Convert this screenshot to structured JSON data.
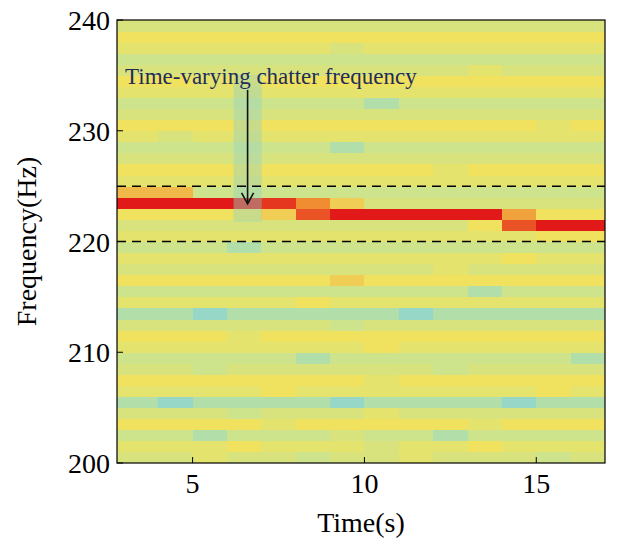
{
  "chart_data": {
    "type": "heatmap",
    "x_label": "Time(s)",
    "y_label": "Frequency(Hz)",
    "xlim": [
      2.8,
      17
    ],
    "ylim": [
      200,
      240
    ],
    "xticks": [
      5,
      10,
      15
    ],
    "yticks": [
      200,
      210,
      220,
      230,
      240
    ],
    "x_edges": [
      2.8,
      4,
      5,
      6,
      7,
      8,
      9,
      10,
      11,
      12,
      13,
      14,
      15,
      16,
      17
    ],
    "y_edges": [
      200,
      201,
      202,
      203,
      204,
      205,
      206,
      207,
      208,
      209,
      210,
      211,
      212,
      213,
      214,
      215,
      216,
      217,
      218,
      219,
      220,
      221,
      222,
      223,
      224,
      225,
      226,
      227,
      228,
      229,
      230,
      231,
      232,
      233,
      234,
      235,
      236,
      237,
      238,
      239,
      240
    ],
    "color_range": [
      0,
      1
    ],
    "cells": [
      [
        0.5,
        0.5,
        0.55,
        0.5,
        0.5,
        0.45,
        0.5,
        0.5,
        0.55,
        0.5,
        0.5,
        0.5,
        0.45,
        0.5
      ],
      [
        0.55,
        0.55,
        0.55,
        0.6,
        0.55,
        0.55,
        0.55,
        0.5,
        0.55,
        0.55,
        0.6,
        0.55,
        0.55,
        0.55
      ],
      [
        0.45,
        0.45,
        0.4,
        0.45,
        0.45,
        0.45,
        0.5,
        0.45,
        0.45,
        0.4,
        0.45,
        0.45,
        0.45,
        0.45
      ],
      [
        0.6,
        0.6,
        0.6,
        0.6,
        0.55,
        0.6,
        0.6,
        0.6,
        0.6,
        0.6,
        0.55,
        0.6,
        0.6,
        0.6
      ],
      [
        0.5,
        0.5,
        0.5,
        0.45,
        0.5,
        0.5,
        0.5,
        0.55,
        0.5,
        0.5,
        0.5,
        0.5,
        0.5,
        0.5
      ],
      [
        0.4,
        0.35,
        0.4,
        0.4,
        0.4,
        0.4,
        0.35,
        0.4,
        0.4,
        0.4,
        0.4,
        0.35,
        0.4,
        0.4
      ],
      [
        0.55,
        0.55,
        0.55,
        0.55,
        0.6,
        0.55,
        0.55,
        0.55,
        0.55,
        0.55,
        0.55,
        0.55,
        0.6,
        0.55
      ],
      [
        0.6,
        0.6,
        0.6,
        0.6,
        0.6,
        0.6,
        0.6,
        0.55,
        0.6,
        0.6,
        0.6,
        0.6,
        0.6,
        0.6
      ],
      [
        0.5,
        0.5,
        0.45,
        0.5,
        0.5,
        0.5,
        0.5,
        0.5,
        0.5,
        0.45,
        0.5,
        0.5,
        0.5,
        0.5
      ],
      [
        0.45,
        0.45,
        0.45,
        0.45,
        0.45,
        0.4,
        0.45,
        0.45,
        0.45,
        0.45,
        0.45,
        0.45,
        0.45,
        0.4
      ],
      [
        0.55,
        0.55,
        0.55,
        0.55,
        0.55,
        0.55,
        0.55,
        0.6,
        0.55,
        0.55,
        0.55,
        0.55,
        0.55,
        0.55
      ],
      [
        0.6,
        0.6,
        0.6,
        0.55,
        0.6,
        0.6,
        0.6,
        0.6,
        0.6,
        0.6,
        0.6,
        0.6,
        0.6,
        0.6
      ],
      [
        0.5,
        0.5,
        0.5,
        0.5,
        0.5,
        0.5,
        0.45,
        0.5,
        0.5,
        0.5,
        0.5,
        0.5,
        0.5,
        0.5
      ],
      [
        0.4,
        0.4,
        0.35,
        0.4,
        0.4,
        0.4,
        0.4,
        0.4,
        0.35,
        0.4,
        0.4,
        0.4,
        0.4,
        0.4
      ],
      [
        0.55,
        0.55,
        0.55,
        0.55,
        0.55,
        0.6,
        0.55,
        0.55,
        0.55,
        0.55,
        0.55,
        0.55,
        0.55,
        0.55
      ],
      [
        0.45,
        0.45,
        0.45,
        0.45,
        0.45,
        0.45,
        0.45,
        0.45,
        0.45,
        0.45,
        0.4,
        0.45,
        0.45,
        0.45
      ],
      [
        0.6,
        0.6,
        0.6,
        0.6,
        0.6,
        0.6,
        0.65,
        0.6,
        0.6,
        0.6,
        0.6,
        0.6,
        0.6,
        0.6
      ],
      [
        0.5,
        0.5,
        0.5,
        0.5,
        0.5,
        0.5,
        0.5,
        0.5,
        0.5,
        0.55,
        0.5,
        0.5,
        0.5,
        0.5
      ],
      [
        0.55,
        0.55,
        0.55,
        0.55,
        0.55,
        0.55,
        0.55,
        0.55,
        0.55,
        0.55,
        0.55,
        0.6,
        0.55,
        0.55
      ],
      [
        0.45,
        0.45,
        0.45,
        0.4,
        0.45,
        0.45,
        0.45,
        0.45,
        0.45,
        0.45,
        0.45,
        0.45,
        0.45,
        0.45
      ],
      [
        0.55,
        0.55,
        0.55,
        0.55,
        0.55,
        0.55,
        0.55,
        0.55,
        0.55,
        0.55,
        0.55,
        0.55,
        0.6,
        0.6
      ],
      [
        0.5,
        0.5,
        0.5,
        0.5,
        0.5,
        0.5,
        0.5,
        0.5,
        0.5,
        0.5,
        0.6,
        0.9,
        1.0,
        1.0
      ],
      [
        0.6,
        0.6,
        0.6,
        0.6,
        0.65,
        0.9,
        1.0,
        1.0,
        1.0,
        1.0,
        1.0,
        0.75,
        0.6,
        0.6
      ],
      [
        1.0,
        1.0,
        1.0,
        1.0,
        0.95,
        0.8,
        0.65,
        0.5,
        0.5,
        0.5,
        0.5,
        0.5,
        0.5,
        0.5
      ],
      [
        0.7,
        0.7,
        0.45,
        0.45,
        0.45,
        0.45,
        0.45,
        0.45,
        0.45,
        0.45,
        0.45,
        0.45,
        0.45,
        0.45
      ],
      [
        0.55,
        0.55,
        0.55,
        0.55,
        0.55,
        0.55,
        0.55,
        0.55,
        0.55,
        0.55,
        0.55,
        0.55,
        0.55,
        0.55
      ],
      [
        0.6,
        0.6,
        0.6,
        0.6,
        0.6,
        0.6,
        0.6,
        0.6,
        0.6,
        0.55,
        0.6,
        0.6,
        0.6,
        0.6
      ],
      [
        0.5,
        0.5,
        0.5,
        0.5,
        0.5,
        0.5,
        0.5,
        0.5,
        0.5,
        0.5,
        0.5,
        0.5,
        0.5,
        0.5
      ],
      [
        0.45,
        0.45,
        0.45,
        0.45,
        0.45,
        0.45,
        0.4,
        0.45,
        0.45,
        0.45,
        0.45,
        0.45,
        0.45,
        0.45
      ],
      [
        0.55,
        0.5,
        0.55,
        0.55,
        0.55,
        0.55,
        0.55,
        0.55,
        0.55,
        0.55,
        0.55,
        0.55,
        0.55,
        0.55
      ],
      [
        0.6,
        0.6,
        0.6,
        0.6,
        0.6,
        0.6,
        0.6,
        0.6,
        0.6,
        0.6,
        0.6,
        0.6,
        0.55,
        0.6
      ],
      [
        0.5,
        0.5,
        0.5,
        0.5,
        0.5,
        0.5,
        0.5,
        0.5,
        0.5,
        0.5,
        0.5,
        0.5,
        0.5,
        0.5
      ],
      [
        0.45,
        0.45,
        0.45,
        0.45,
        0.45,
        0.45,
        0.45,
        0.4,
        0.45,
        0.45,
        0.45,
        0.45,
        0.45,
        0.45
      ],
      [
        0.55,
        0.55,
        0.55,
        0.55,
        0.55,
        0.55,
        0.55,
        0.55,
        0.55,
        0.55,
        0.55,
        0.55,
        0.55,
        0.55
      ],
      [
        0.6,
        0.6,
        0.55,
        0.6,
        0.6,
        0.6,
        0.6,
        0.6,
        0.6,
        0.6,
        0.6,
        0.6,
        0.6,
        0.6
      ],
      [
        0.5,
        0.5,
        0.5,
        0.5,
        0.5,
        0.5,
        0.5,
        0.5,
        0.5,
        0.5,
        0.55,
        0.5,
        0.5,
        0.5
      ],
      [
        0.45,
        0.45,
        0.45,
        0.45,
        0.45,
        0.45,
        0.45,
        0.45,
        0.45,
        0.45,
        0.45,
        0.45,
        0.45,
        0.45
      ],
      [
        0.55,
        0.55,
        0.55,
        0.55,
        0.55,
        0.55,
        0.5,
        0.55,
        0.55,
        0.55,
        0.55,
        0.55,
        0.55,
        0.55
      ],
      [
        0.6,
        0.6,
        0.6,
        0.6,
        0.6,
        0.6,
        0.6,
        0.6,
        0.6,
        0.6,
        0.6,
        0.6,
        0.6,
        0.6
      ],
      [
        0.5,
        0.5,
        0.5,
        0.5,
        0.5,
        0.5,
        0.5,
        0.5,
        0.5,
        0.5,
        0.5,
        0.5,
        0.5,
        0.5
      ]
    ],
    "hlines": [
      220,
      225
    ],
    "line_style": "dashed",
    "annotations": [
      {
        "text": "Time-varying chatter frequency",
        "x": 6.6,
        "y": 223.3
      }
    ]
  }
}
